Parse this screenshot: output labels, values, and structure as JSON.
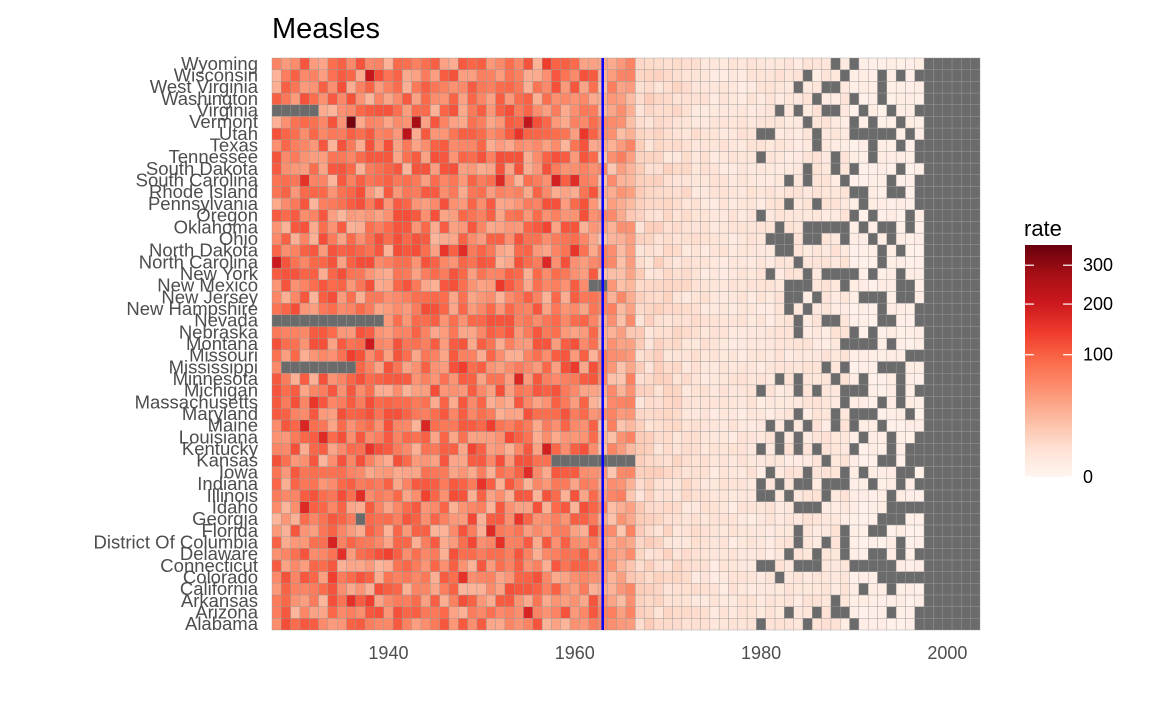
{
  "chart_data": {
    "type": "heatmap",
    "title": "Measles",
    "xlabel": "",
    "ylabel": "",
    "x_range": [
      1928,
      2003
    ],
    "x_ticks": [
      1940,
      1960,
      1980,
      2000
    ],
    "vaccine_line_year": 1963,
    "vaccine_line_color": "#0000ff",
    "missing_color": "#6b6b6b",
    "grid": false,
    "legend": {
      "title": "rate",
      "placement": "right",
      "ticks": [
        0,
        100,
        200,
        300
      ],
      "scale": "sqrt",
      "max": 360,
      "colors": [
        "#fff5f0",
        "#fee0d2",
        "#fcbba1",
        "#fc9272",
        "#fb6a4a",
        "#ef3b2c",
        "#cb181d",
        "#a50f15",
        "#67000d"
      ]
    },
    "states": [
      "Alabama",
      "Arizona",
      "Arkansas",
      "California",
      "Colorado",
      "Connecticut",
      "Delaware",
      "District Of Columbia",
      "Florida",
      "Georgia",
      "Idaho",
      "Illinois",
      "Indiana",
      "Iowa",
      "Kansas",
      "Kentucky",
      "Louisiana",
      "Maine",
      "Maryland",
      "Massachusetts",
      "Michigan",
      "Minnesota",
      "Mississippi",
      "Missouri",
      "Montana",
      "Nebraska",
      "Nevada",
      "New Hampshire",
      "New Jersey",
      "New Mexico",
      "New York",
      "North Carolina",
      "North Dakota",
      "Ohio",
      "Oklahoma",
      "Oregon",
      "Pennsylvania",
      "Rhode Island",
      "South Carolina",
      "South Dakota",
      "Tennessee",
      "Texas",
      "Utah",
      "Vermont",
      "Virginia",
      "Washington",
      "West Virginia",
      "Wisconsin",
      "Wyoming"
    ],
    "era_rates": {
      "pre_1963": 72,
      "1963_1966": 42,
      "1967_1975": 9,
      "1976_1989": 3,
      "1990_2003": 0.6
    },
    "missing_blocks": [
      {
        "state": "Virginia",
        "from": 1928,
        "to": 1932
      },
      {
        "state": "Nevada",
        "from": 1928,
        "to": 1939
      },
      {
        "state": "Mississippi",
        "from": 1929,
        "to": 1936
      },
      {
        "state": "Kansas",
        "from": 1958,
        "to": 1966
      },
      {
        "state": "New Mexico",
        "from": 1962,
        "to": 1963
      },
      {
        "state": "Georgia",
        "from": 1937,
        "to": 1937
      },
      {
        "state": "All states",
        "from": 1998,
        "to": 2003
      }
    ],
    "notable_highs": [
      {
        "state": "Vermont",
        "year": 1936,
        "rate": 340
      },
      {
        "state": "Vermont",
        "year": 1943,
        "rate": 270
      },
      {
        "state": "Utah",
        "year": 1942,
        "rate": 230
      },
      {
        "state": "Wisconsin",
        "year": 1938,
        "rate": 210
      },
      {
        "state": "Montana",
        "year": 1938,
        "rate": 200
      },
      {
        "state": "North Carolina",
        "year": 1928,
        "rate": 200
      },
      {
        "state": "Vermont",
        "year": 1955,
        "rate": 220
      }
    ]
  }
}
